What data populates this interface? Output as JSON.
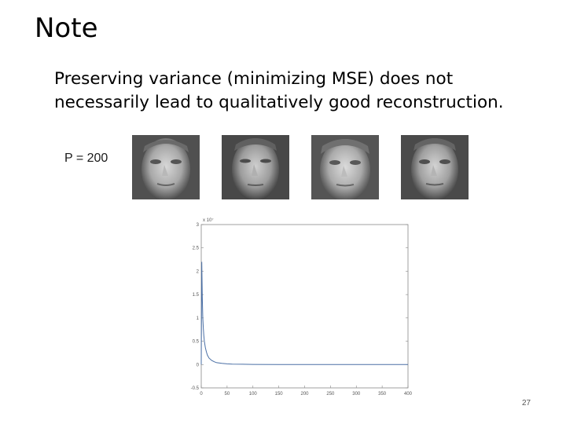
{
  "slide": {
    "title": "Note",
    "body_lines": [
      "Preserving variance (minimizing MSE) does not",
      "necessarily lead to qualitatively good reconstruction."
    ],
    "p_label": "P = 200",
    "page_number": "27"
  },
  "faces": [
    "face-image",
    "face-image",
    "face-image",
    "face-image"
  ],
  "chart_data": {
    "type": "line",
    "title": "",
    "xlabel": "",
    "ylabel": "",
    "exponent_label": "x 10⁷",
    "xlim": [
      0,
      400
    ],
    "ylim": [
      -0.5,
      3
    ],
    "x_ticks": [
      "0",
      "50",
      "100",
      "150",
      "200",
      "250",
      "300",
      "350",
      "400"
    ],
    "y_ticks": [
      {
        "value": 3,
        "label": "3"
      },
      {
        "value": 2.5,
        "label": "2.5"
      },
      {
        "value": 2,
        "label": "2"
      },
      {
        "value": 1.5,
        "label": "1.5"
      },
      {
        "value": 1,
        "label": "1"
      },
      {
        "value": 0.5,
        "label": "0.5"
      },
      {
        "value": 0,
        "label": "0"
      },
      {
        "value": -0.5,
        "label": "-0.5"
      }
    ],
    "series": [
      {
        "color": "#4a6fa5",
        "x": [
          0,
          1,
          2,
          3,
          4,
          5,
          6,
          8,
          10,
          12,
          15,
          20,
          25,
          30,
          40,
          50,
          60,
          80,
          100,
          150,
          200,
          250,
          300,
          350,
          400
        ],
        "y": [
          0,
          2.2,
          1.45,
          1.0,
          0.78,
          0.62,
          0.5,
          0.36,
          0.27,
          0.2,
          0.14,
          0.09,
          0.06,
          0.04,
          0.025,
          0.015,
          0.01,
          0.006,
          0.003,
          0.001,
          0.0005,
          0.0002,
          0.0001,
          0.0,
          0.0
        ]
      }
    ],
    "grid": false
  }
}
